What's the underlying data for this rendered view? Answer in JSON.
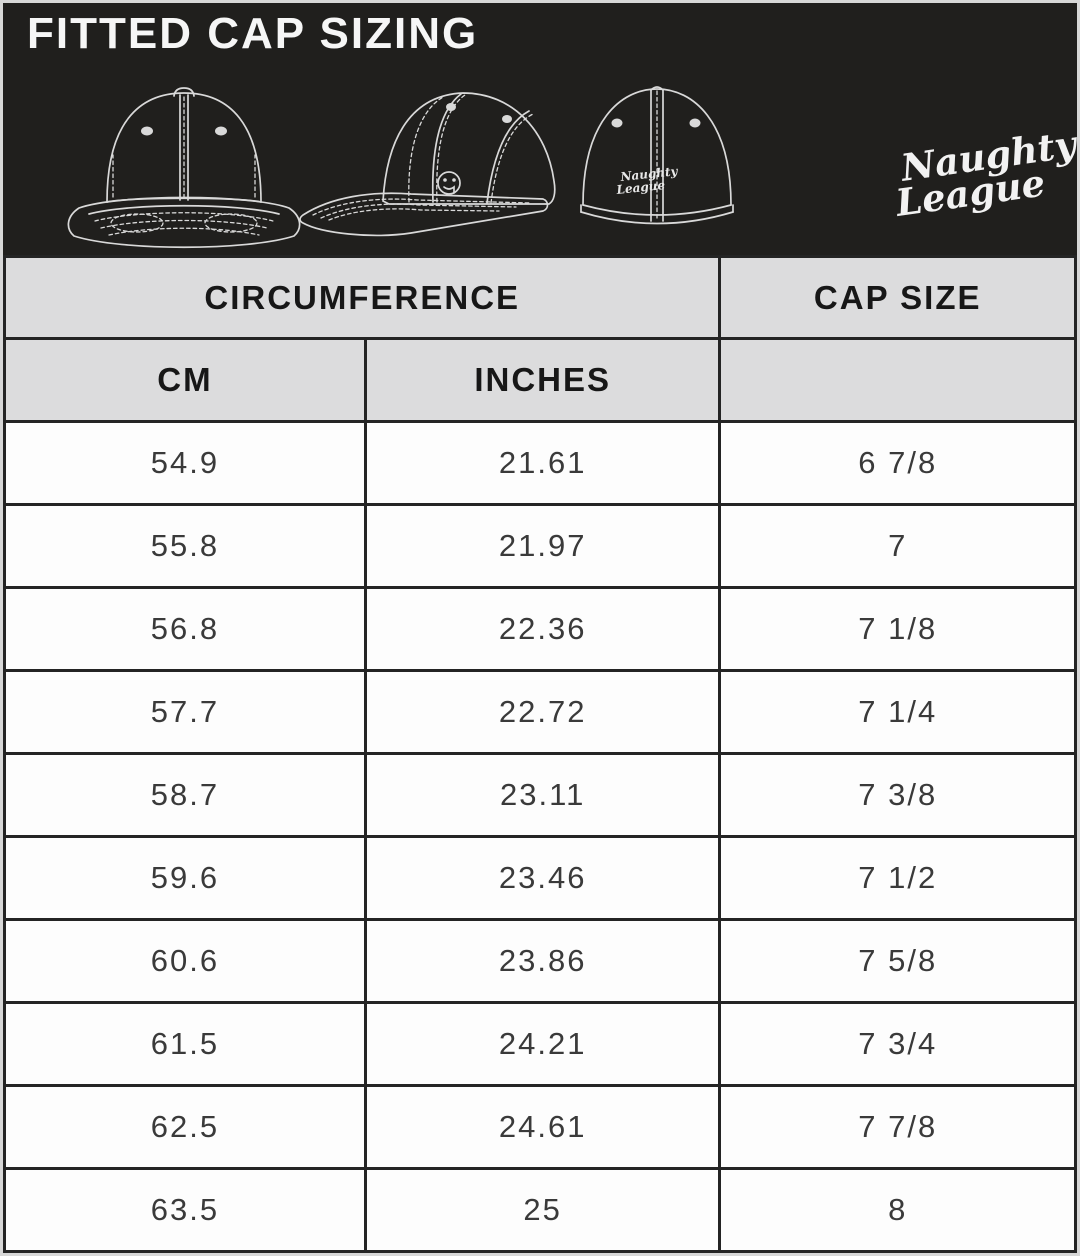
{
  "header": {
    "title": "FITTED CAP SIZING",
    "brand": "Naughty League",
    "brand_line1": "Naughty",
    "brand_line2": "League",
    "illustrations": [
      "cap-front-view",
      "cap-side-view",
      "cap-back-view"
    ],
    "icons": [
      "smiley-logo-icon",
      "naughty-league-script-logo"
    ],
    "colors": {
      "banner_bg": "#201f1d",
      "line_art": "#d9d9d9",
      "title_text": "#f6f6f6"
    }
  },
  "table": {
    "group_headers": [
      {
        "label": "CIRCUMFERENCE",
        "span": 2
      },
      {
        "label": "CAP SIZE",
        "span": 1
      }
    ],
    "columns": [
      "CM",
      "INCHES",
      ""
    ],
    "rows": [
      [
        "54.9",
        "21.61",
        "6 7/8"
      ],
      [
        "55.8",
        "21.97",
        "7"
      ],
      [
        "56.8",
        "22.36",
        "7 1/8"
      ],
      [
        "57.7",
        "22.72",
        "7 1/4"
      ],
      [
        "58.7",
        "23.11",
        "7 3/8"
      ],
      [
        "59.6",
        "23.46",
        "7 1/2"
      ],
      [
        "60.6",
        "23.86",
        "7 5/8"
      ],
      [
        "61.5",
        "24.21",
        "7 3/4"
      ],
      [
        "62.5",
        "24.61",
        "7 7/8"
      ],
      [
        "63.5",
        "25",
        "8"
      ]
    ],
    "colors": {
      "header_bg": "#dcdcdd",
      "row_bg": "#fdfdfd",
      "border": "#242424",
      "header_text": "#171717",
      "cell_text": "#3a3a3a"
    }
  }
}
